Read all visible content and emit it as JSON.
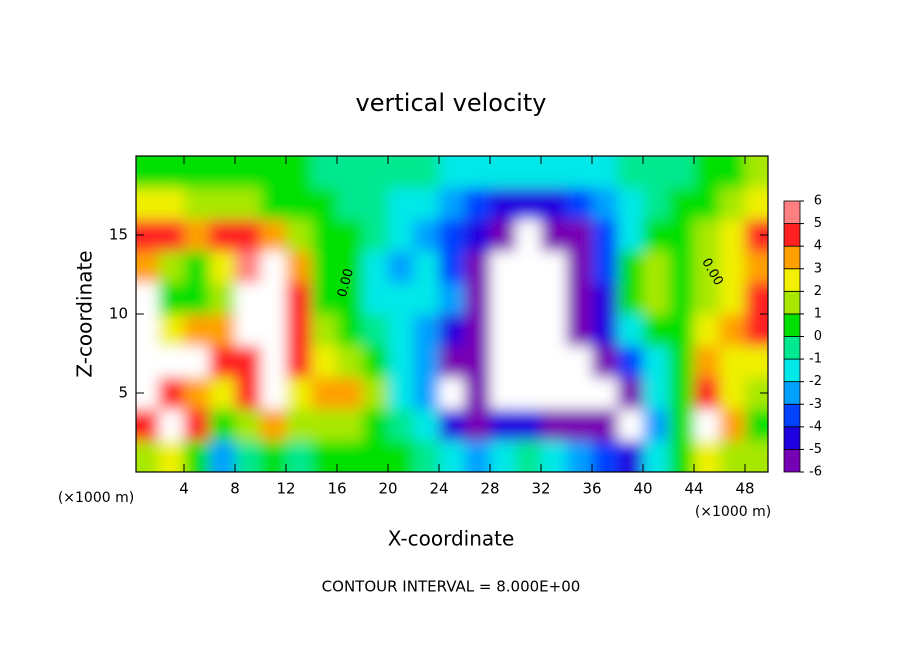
{
  "chart_data": {
    "type": "heatmap",
    "title": "vertical velocity",
    "x_label": "X-coordinate",
    "y_label": "Z-coordinate",
    "x_unit_label": "(×1000 m)",
    "y_unit_label": "(×1000 m)",
    "footer": "CONTOUR INTERVAL = 8.000E+00",
    "contour_label": "0.00",
    "xlim": [
      0,
      50
    ],
    "ylim": [
      0,
      20
    ],
    "xticks": [
      4,
      8,
      12,
      16,
      20,
      24,
      28,
      32,
      36,
      40,
      44,
      48
    ],
    "yticks": [
      5,
      10,
      15
    ],
    "x": [
      1,
      3,
      5,
      7,
      9,
      11,
      13,
      15,
      17,
      19,
      21,
      23,
      25,
      27,
      29,
      31,
      33,
      35,
      37,
      39,
      41,
      43,
      45,
      47,
      49
    ],
    "y": [
      1,
      3,
      5,
      7,
      9,
      11,
      13,
      15,
      17,
      19
    ],
    "values": [
      [
        2,
        3,
        1,
        -2,
        0,
        1,
        0,
        1,
        0.5,
        1,
        0.5,
        -0.5,
        -1.5,
        -2,
        -1,
        0,
        -1,
        -2,
        -3,
        -4,
        -1,
        0.5,
        3,
        2,
        2
      ],
      [
        5,
        8,
        5,
        1,
        2,
        4,
        2,
        2,
        2,
        1,
        -0.5,
        -1,
        -4,
        -6,
        -4,
        -4,
        -5,
        -6,
        -6,
        -7,
        -2,
        0.5,
        7,
        4,
        1
      ],
      [
        7,
        5,
        4,
        3,
        5,
        8,
        3,
        4,
        4,
        1.5,
        -1,
        -2,
        -7,
        -6,
        -8,
        -7,
        -7,
        -8,
        -7,
        -5,
        -1.5,
        1,
        5,
        3,
        2
      ],
      [
        8,
        7,
        7,
        5,
        5,
        8,
        5,
        3,
        2,
        0.5,
        -1,
        -2.5,
        -5,
        -5,
        -8,
        -8,
        -8,
        -7,
        -5,
        -3,
        -1,
        1,
        4,
        3,
        3
      ],
      [
        8,
        3,
        4,
        4,
        7,
        8,
        5,
        2,
        1,
        -0.5,
        -1,
        -2,
        -4,
        -6,
        -8,
        -8,
        -8,
        -6,
        -4,
        -1,
        0.5,
        1,
        3,
        4,
        5
      ],
      [
        8,
        0.5,
        1,
        2,
        8,
        8,
        5,
        1,
        0.5,
        -1,
        -1.5,
        -1.5,
        -2.5,
        -5,
        -8,
        -8,
        -8,
        -6,
        -4,
        1,
        2,
        1,
        2,
        3,
        5
      ],
      [
        4,
        2,
        1,
        3,
        6,
        8,
        4,
        1,
        0.5,
        -1,
        -2,
        -1.5,
        -3,
        -5,
        -8,
        -8,
        -7,
        -5,
        -3,
        1,
        1.5,
        0.5,
        2,
        3,
        4
      ],
      [
        5,
        5,
        4,
        5,
        5,
        4,
        2,
        1,
        0.5,
        -0.5,
        -1,
        -2,
        -3,
        -4,
        -6,
        -7,
        -6,
        -5,
        -3,
        -1,
        0.5,
        0.5,
        1.5,
        3,
        5
      ],
      [
        3,
        3,
        2,
        2,
        2,
        1,
        1,
        0.5,
        0,
        -0.5,
        -1,
        -1.5,
        -2,
        -3,
        -4,
        -4,
        -4,
        -3,
        -2,
        -1,
        0,
        0.5,
        1,
        2,
        3
      ],
      [
        1,
        1,
        1,
        1,
        0.5,
        0.5,
        0.5,
        0,
        0,
        -0.5,
        -0.5,
        -0.5,
        -1,
        -1,
        -1,
        -1.5,
        -1.5,
        -1,
        -1,
        -0.5,
        0,
        0,
        0.5,
        1,
        2
      ]
    ],
    "levels": [
      -6,
      -5,
      -4,
      -3,
      -2,
      -1,
      0,
      1,
      2,
      3,
      4,
      5,
      6
    ],
    "colors": [
      "#7800b4",
      "#2000e0",
      "#0040ff",
      "#00a0ff",
      "#00e8e8",
      "#00e890",
      "#00e000",
      "#a8e800",
      "#f0f000",
      "#ffa000",
      "#ff2020",
      "#ff8080"
    ],
    "out_of_range_color": "#ffffff",
    "colorbar_ticks": [
      -6,
      -5,
      -4,
      -3,
      -2,
      -1,
      0,
      1,
      2,
      3,
      4,
      5,
      6
    ]
  }
}
